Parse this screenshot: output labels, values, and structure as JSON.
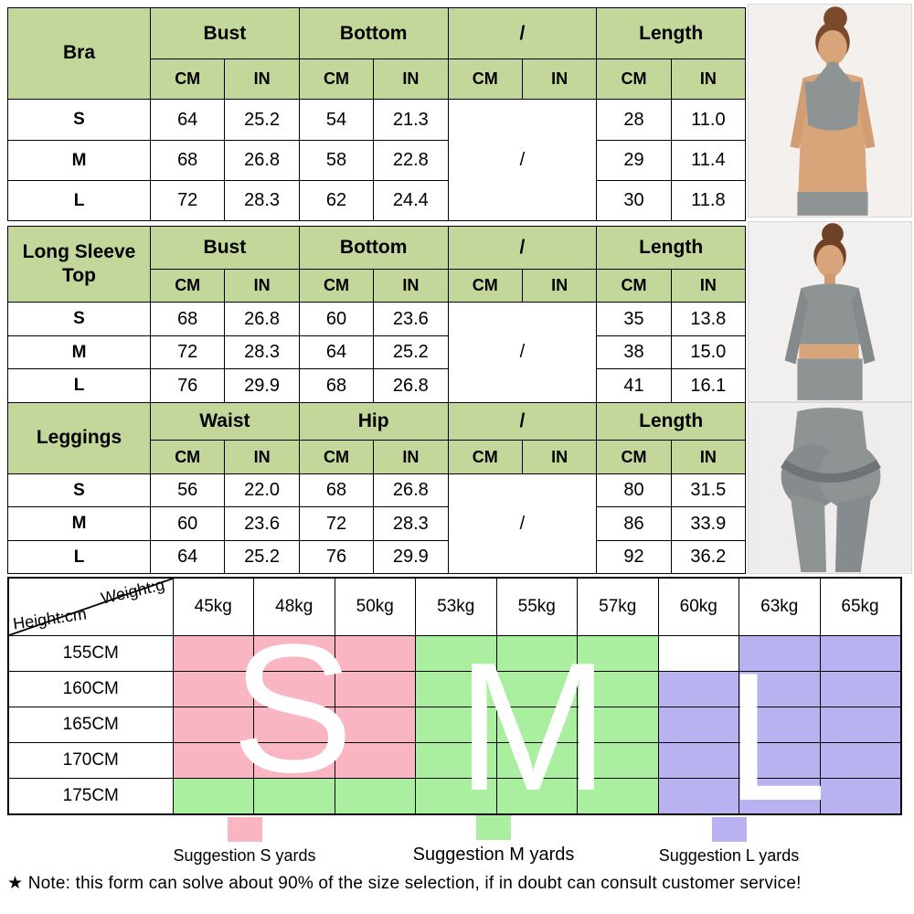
{
  "colors": {
    "header_green": "#c4d79b",
    "suggest_s_pink": "#fab5c3",
    "suggest_m_green": "#a9ef9f",
    "suggest_l_purple": "#b8b2f1"
  },
  "size_tables": [
    {
      "label": "Bra",
      "groups": [
        "Bust",
        "Bottom",
        "/",
        "Length"
      ],
      "units": [
        "CM",
        "IN",
        "CM",
        "IN",
        "CM",
        "IN",
        "CM",
        "IN"
      ],
      "slash": "/",
      "rows": [
        {
          "size": "S",
          "values": [
            "64",
            "25.2",
            "54",
            "21.3",
            "28",
            "11.0"
          ]
        },
        {
          "size": "M",
          "values": [
            "68",
            "26.8",
            "58",
            "22.8",
            "29",
            "11.4"
          ]
        },
        {
          "size": "L",
          "values": [
            "72",
            "28.3",
            "62",
            "24.4",
            "30",
            "11.8"
          ]
        }
      ]
    },
    {
      "label": "Long Sleeve Top",
      "groups": [
        "Bust",
        "Bottom",
        "/",
        "Length"
      ],
      "units": [
        "CM",
        "IN",
        "CM",
        "IN",
        "CM",
        "IN",
        "CM",
        "IN"
      ],
      "slash": "/",
      "rows": [
        {
          "size": "S",
          "values": [
            "68",
            "26.8",
            "60",
            "23.6",
            "35",
            "13.8"
          ]
        },
        {
          "size": "M",
          "values": [
            "72",
            "28.3",
            "64",
            "25.2",
            "38",
            "15.0"
          ]
        },
        {
          "size": "L",
          "values": [
            "76",
            "29.9",
            "68",
            "26.8",
            "41",
            "16.1"
          ]
        }
      ]
    },
    {
      "label": "Leggings",
      "groups": [
        "Waist",
        "Hip",
        "/",
        "Length"
      ],
      "units": [
        "CM",
        "IN",
        "CM",
        "IN",
        "CM",
        "IN",
        "CM",
        "IN"
      ],
      "slash": "/",
      "rows": [
        {
          "size": "S",
          "values": [
            "56",
            "22.0",
            "68",
            "26.8",
            "80",
            "31.5"
          ]
        },
        {
          "size": "M",
          "values": [
            "60",
            "23.6",
            "72",
            "28.3",
            "86",
            "33.9"
          ]
        },
        {
          "size": "L",
          "values": [
            "64",
            "25.2",
            "76",
            "29.9",
            "92",
            "36.2"
          ]
        }
      ]
    }
  ],
  "matrix": {
    "corner_top": "Weight:g",
    "corner_bottom": "Height:cm",
    "weights": [
      "45kg",
      "48kg",
      "50kg",
      "53kg",
      "55kg",
      "57kg",
      "60kg",
      "63kg",
      "65kg"
    ],
    "heights": [
      "155CM",
      "160CM",
      "165CM",
      "170CM",
      "175CM"
    ],
    "cells": [
      [
        "S",
        "S",
        "S",
        "M",
        "M",
        "M",
        "",
        "L",
        "L"
      ],
      [
        "S",
        "S",
        "S",
        "M",
        "M",
        "M",
        "L",
        "L",
        "L"
      ],
      [
        "S",
        "S",
        "S",
        "M",
        "M",
        "M",
        "L",
        "L",
        "L"
      ],
      [
        "S",
        "S",
        "S",
        "M",
        "M",
        "M",
        "L",
        "L",
        "L"
      ],
      [
        "M",
        "M",
        "M",
        "M",
        "M",
        "M",
        "L",
        "L",
        "L"
      ]
    ],
    "letters": {
      "s": "S",
      "m": "M",
      "l": "L"
    }
  },
  "legend": [
    {
      "key": "S",
      "label": "Suggestion S yards"
    },
    {
      "key": "M",
      "label": "Suggestion M yards"
    },
    {
      "key": "L",
      "label": "Suggestion L yards"
    }
  ],
  "note": "★ Note: this form can solve about 90% of the size selection, if in doubt can consult customer service!"
}
